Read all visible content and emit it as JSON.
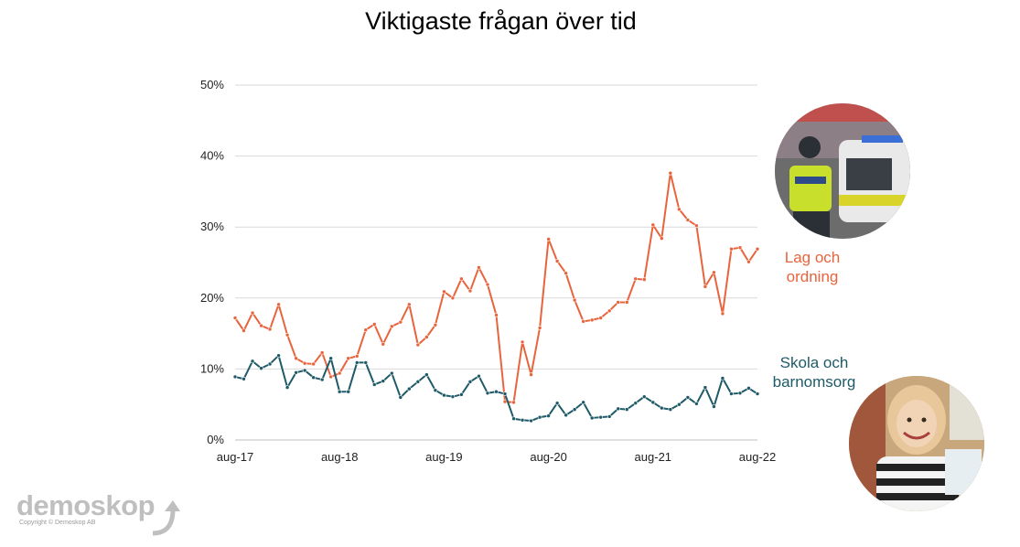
{
  "title": "Viktigaste frågan över tid",
  "chart_data": {
    "type": "line",
    "title": "Viktigaste frågan över tid",
    "xlabel": "",
    "ylabel": "",
    "ylim": [
      0,
      50
    ],
    "y_ticks": [
      "0%",
      "10%",
      "20%",
      "30%",
      "40%",
      "50%"
    ],
    "x_ticks": [
      "aug-17",
      "aug-18",
      "aug-19",
      "aug-20",
      "aug-21",
      "aug-22"
    ],
    "x": [
      "aug-17",
      "sep-17",
      "okt-17",
      "nov-17",
      "dec-17",
      "jan-18",
      "feb-18",
      "mar-18",
      "apr-18",
      "maj-18",
      "jun-18",
      "jul-18",
      "aug-18",
      "sep-18",
      "okt-18",
      "nov-18",
      "dec-18",
      "jan-19",
      "feb-19",
      "mar-19",
      "apr-19",
      "maj-19",
      "jun-19",
      "jul-19",
      "aug-19",
      "sep-19",
      "okt-19",
      "nov-19",
      "dec-19",
      "jan-20",
      "feb-20",
      "mar-20",
      "apr-20",
      "maj-20",
      "jun-20",
      "jul-20",
      "aug-20",
      "sep-20",
      "okt-20",
      "nov-20",
      "dec-20",
      "jan-21",
      "feb-21",
      "mar-21",
      "apr-21",
      "maj-21",
      "jun-21",
      "jul-21",
      "aug-21",
      "sep-21",
      "okt-21",
      "nov-21",
      "dec-21",
      "jan-22",
      "feb-22",
      "mar-22",
      "apr-22",
      "maj-22",
      "jun-22",
      "jul-22",
      "aug-22"
    ],
    "grid": true,
    "series": [
      {
        "name": "Lag och ordning",
        "color": "#e8643c",
        "values": [
          17.2,
          15.4,
          17.9,
          16.1,
          15.6,
          19.1,
          14.8,
          11.5,
          10.8,
          10.7,
          12.3,
          8.9,
          9.4,
          11.5,
          11.8,
          15.5,
          16.3,
          13.5,
          16.0,
          16.6,
          19.1,
          13.4,
          14.5,
          16.2,
          20.9,
          20.0,
          22.7,
          21.0,
          24.3,
          21.9,
          17.6,
          5.4,
          5.3,
          13.8,
          9.2,
          15.8,
          28.3,
          25.2,
          23.5,
          19.7,
          16.7,
          16.9,
          17.2,
          18.2,
          19.4,
          19.4,
          22.7,
          22.6,
          30.3,
          28.4,
          37.6,
          32.5,
          31.0,
          30.2,
          21.6,
          23.6,
          17.8,
          26.9,
          27.1,
          25.1,
          26.9
        ]
      },
      {
        "name": "Skola och barnomsorg",
        "color": "#1f5a68",
        "values": [
          8.9,
          8.6,
          11.1,
          10.1,
          10.7,
          11.9,
          7.4,
          9.5,
          9.8,
          8.8,
          8.5,
          11.5,
          6.8,
          6.8,
          10.9,
          10.9,
          7.8,
          8.3,
          9.4,
          6.0,
          7.2,
          8.2,
          9.2,
          7.0,
          6.3,
          6.1,
          6.4,
          8.2,
          9.0,
          6.6,
          6.8,
          6.5,
          3.0,
          2.8,
          2.7,
          3.2,
          3.4,
          5.2,
          3.5,
          4.3,
          5.3,
          3.1,
          3.2,
          3.3,
          4.4,
          4.3,
          5.2,
          6.1,
          5.3,
          4.5,
          4.3,
          5.0,
          6.0,
          5.1,
          7.4,
          4.7,
          8.7,
          6.5,
          6.6,
          7.3,
          6.5
        ]
      }
    ]
  },
  "labels": {
    "lag_line1": "Lag och",
    "lag_line2": "ordning",
    "skola_line1": "Skola och",
    "skola_line2": "barnomsorg"
  },
  "logo": {
    "name": "demoskop",
    "copyright": "Copyright © Demoskop AB"
  }
}
